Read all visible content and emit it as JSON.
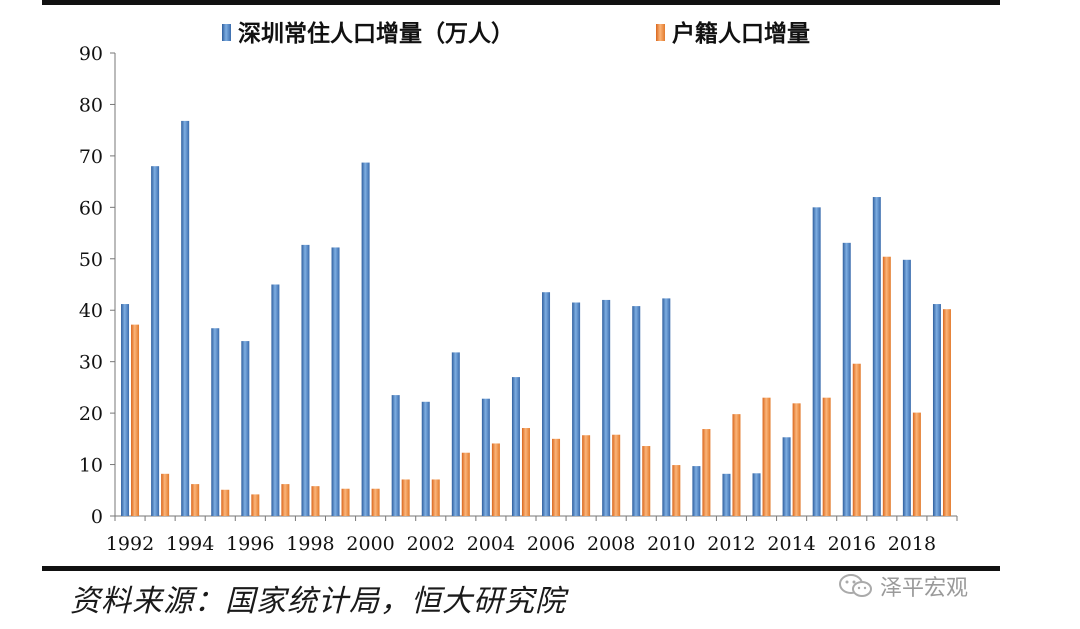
{
  "chart_data": {
    "type": "bar",
    "legend": [
      {
        "name": "深圳常住人口增量（万人）",
        "color": "#4a7fc4"
      },
      {
        "name": "户籍人口增量",
        "color": "#ee8a3c"
      }
    ],
    "categories": [
      "1992",
      "1993",
      "1994",
      "1995",
      "1996",
      "1997",
      "1998",
      "1999",
      "2000",
      "2001",
      "2002",
      "2003",
      "2004",
      "2005",
      "2006",
      "2007",
      "2008",
      "2009",
      "2010",
      "2011",
      "2012",
      "2013",
      "2014",
      "2015",
      "2016",
      "2017",
      "2018",
      "2019"
    ],
    "tick_labels": [
      "1992",
      "1994",
      "1996",
      "1998",
      "2000",
      "2002",
      "2004",
      "2006",
      "2008",
      "2010",
      "2012",
      "2014",
      "2016",
      "2018"
    ],
    "series": [
      {
        "name": "深圳常住人口增量（万人）",
        "values": [
          41.2,
          68,
          76.8,
          36.5,
          34,
          45,
          52.7,
          52.2,
          68.7,
          23.5,
          22.2,
          31.8,
          22.8,
          27,
          43.5,
          41.5,
          42,
          40.8,
          42.3,
          9.7,
          8.2,
          8.3,
          15.3,
          60,
          53.1,
          62,
          49.8,
          41.2
        ]
      },
      {
        "name": "户籍人口增量",
        "values": [
          37.2,
          8.2,
          6.2,
          5.1,
          4.2,
          6.2,
          5.8,
          5.3,
          5.3,
          7.1,
          7.1,
          12.3,
          14.1,
          17.1,
          15,
          15.7,
          15.8,
          13.6,
          9.9,
          16.9,
          19.8,
          23,
          21.9,
          23,
          29.6,
          50.4,
          20.1,
          40.2
        ]
      }
    ],
    "ylim": [
      0,
      90
    ],
    "yticks": [
      0,
      10,
      20,
      30,
      40,
      50,
      60,
      70,
      80,
      90
    ],
    "title": "",
    "xlabel": "",
    "ylabel": ""
  },
  "source_text": "资料来源：国家统计局，恒大研究院",
  "watermark_text": "泽平宏观",
  "watermark_icon": "wechat-icon"
}
